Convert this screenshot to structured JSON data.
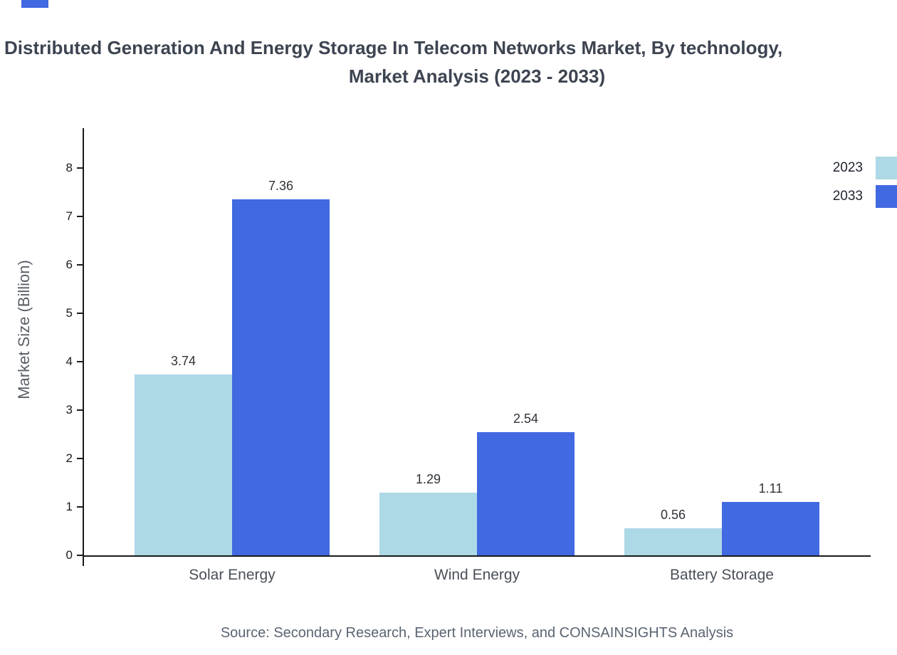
{
  "page": {
    "title_line1": "Distributed Generation And Energy Storage In Telecom Networks Market, By technology,",
    "title_line2": "Market Analysis (2023 - 2033)",
    "source": "Source: Secondary Research, Expert Interviews, and CONSAINSIGHTS Analysis"
  },
  "chart_data": {
    "type": "bar",
    "title": "Distributed Generation And Energy Storage In Telecom Networks Market, By technology, Market Analysis (2023 - 2033)",
    "categories": [
      "Solar Energy",
      "Wind Energy",
      "Battery Storage"
    ],
    "series": [
      {
        "name": "2023",
        "color": "#add8e6",
        "values": [
          3.74,
          1.29,
          0.56
        ]
      },
      {
        "name": "2033",
        "color": "#4169e1",
        "values": [
          7.36,
          2.54,
          1.11
        ]
      }
    ],
    "xlabel": "",
    "ylabel": "Market Size (Billion)",
    "ylim": [
      0,
      8
    ],
    "ytick_step": 1,
    "yticks": [
      0,
      1,
      2,
      3,
      4,
      5,
      6,
      7,
      8
    ],
    "grid": false,
    "legend_position": "top-right",
    "bar_value_labels": [
      "3.74",
      "7.36",
      "1.29",
      "2.54",
      "0.56",
      "1.11"
    ]
  }
}
